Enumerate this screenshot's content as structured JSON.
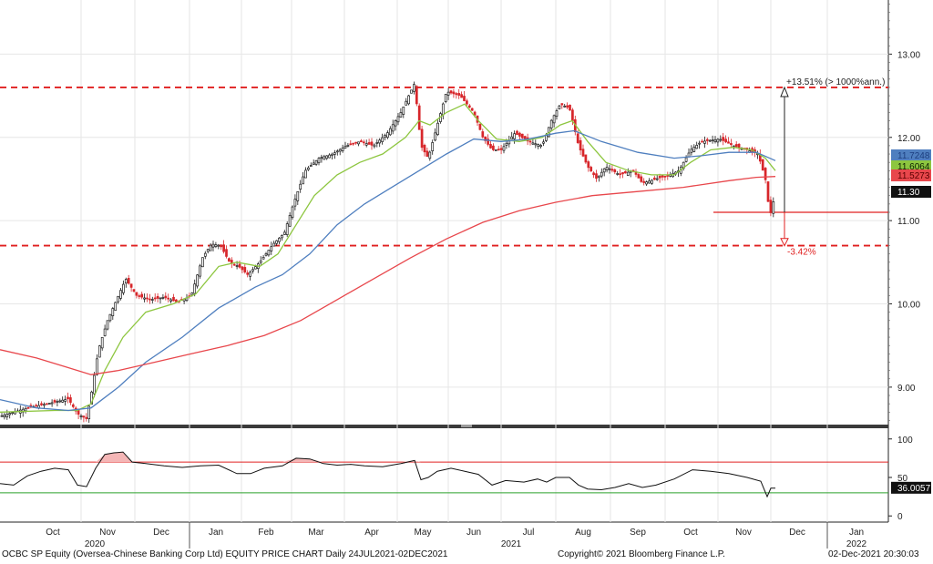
{
  "footer": {
    "left": "OCBC SP Equity (Oversea-Chinese Banking Corp Ltd) EQUITY PRICE CHART  Daily 24JUL2021-02DEC2021",
    "center": "Copyright© 2021 Bloomberg Finance L.P.",
    "right": "02-Dec-2021 20:30:03"
  },
  "chart_data": {
    "type": "line",
    "price_axis": {
      "ylim": [
        8.55,
        13.65
      ],
      "ticks": [
        "9.00",
        "10.00",
        "11.00",
        "12.00",
        "13.00"
      ]
    },
    "rsi_axis": {
      "ylim": [
        -8,
        108
      ],
      "ticks": [
        "0",
        "50",
        "100"
      ]
    },
    "month_labels": [
      "Oct",
      "Nov",
      "Dec",
      "Jan",
      "Feb",
      "Mar",
      "Apr",
      "May",
      "Jun",
      "Jul",
      "Aug",
      "Sep",
      "Oct",
      "Nov",
      "Dec",
      "Jan"
    ],
    "year_labels": [
      "2020",
      "2021",
      "2022"
    ],
    "series": [
      {
        "role": "price",
        "color": "#111111",
        "points": [
          [
            0,
            8.65
          ],
          [
            30,
            8.75
          ],
          [
            60,
            8.82
          ],
          [
            75,
            8.86
          ],
          [
            85,
            8.68
          ],
          [
            95,
            8.62
          ],
          [
            100,
            8.9
          ],
          [
            108,
            9.45
          ],
          [
            118,
            9.8
          ],
          [
            128,
            10.05
          ],
          [
            138,
            10.3
          ],
          [
            150,
            10.1
          ],
          [
            165,
            10.05
          ],
          [
            180,
            10.08
          ],
          [
            195,
            10.02
          ],
          [
            210,
            10.1
          ],
          [
            222,
            10.55
          ],
          [
            232,
            10.72
          ],
          [
            242,
            10.7
          ],
          [
            252,
            10.5
          ],
          [
            262,
            10.45
          ],
          [
            272,
            10.35
          ],
          [
            285,
            10.5
          ],
          [
            300,
            10.72
          ],
          [
            312,
            10.85
          ],
          [
            322,
            11.2
          ],
          [
            335,
            11.6
          ],
          [
            350,
            11.75
          ],
          [
            365,
            11.8
          ],
          [
            380,
            11.9
          ],
          [
            395,
            11.95
          ],
          [
            410,
            11.9
          ],
          [
            425,
            12.05
          ],
          [
            440,
            12.3
          ],
          [
            455,
            12.65
          ],
          [
            462,
            11.9
          ],
          [
            470,
            11.75
          ],
          [
            480,
            12.15
          ],
          [
            490,
            12.55
          ],
          [
            505,
            12.5
          ],
          [
            520,
            12.3
          ],
          [
            530,
            12.0
          ],
          [
            540,
            11.85
          ],
          [
            550,
            11.85
          ],
          [
            565,
            12.05
          ],
          [
            580,
            11.95
          ],
          [
            595,
            11.9
          ],
          [
            605,
            12.2
          ],
          [
            615,
            12.4
          ],
          [
            625,
            12.35
          ],
          [
            635,
            11.9
          ],
          [
            645,
            11.65
          ],
          [
            655,
            11.5
          ],
          [
            665,
            11.65
          ],
          [
            680,
            11.55
          ],
          [
            695,
            11.6
          ],
          [
            705,
            11.45
          ],
          [
            720,
            11.5
          ],
          [
            735,
            11.55
          ],
          [
            745,
            11.6
          ],
          [
            758,
            11.85
          ],
          [
            770,
            11.95
          ],
          [
            790,
            11.98
          ],
          [
            805,
            11.9
          ],
          [
            820,
            11.85
          ],
          [
            832,
            11.8
          ],
          [
            840,
            11.5
          ],
          [
            845,
            11.05
          ],
          [
            848,
            11.2
          ],
          [
            851,
            11.3
          ]
        ]
      },
      {
        "role": "fast moving average",
        "color": "#8dc63f",
        "points": [
          [
            0,
            8.7
          ],
          [
            60,
            8.72
          ],
          [
            85,
            8.72
          ],
          [
            100,
            8.8
          ],
          [
            115,
            9.2
          ],
          [
            135,
            9.6
          ],
          [
            160,
            9.9
          ],
          [
            190,
            10.0
          ],
          [
            215,
            10.12
          ],
          [
            240,
            10.45
          ],
          [
            260,
            10.5
          ],
          [
            285,
            10.45
          ],
          [
            305,
            10.6
          ],
          [
            325,
            10.95
          ],
          [
            345,
            11.3
          ],
          [
            370,
            11.55
          ],
          [
            395,
            11.7
          ],
          [
            420,
            11.8
          ],
          [
            445,
            12.0
          ],
          [
            460,
            12.2
          ],
          [
            472,
            12.15
          ],
          [
            490,
            12.3
          ],
          [
            510,
            12.4
          ],
          [
            525,
            12.2
          ],
          [
            545,
            11.98
          ],
          [
            570,
            11.95
          ],
          [
            595,
            12.0
          ],
          [
            615,
            12.15
          ],
          [
            628,
            12.2
          ],
          [
            645,
            11.95
          ],
          [
            665,
            11.7
          ],
          [
            690,
            11.6
          ],
          [
            715,
            11.55
          ],
          [
            740,
            11.55
          ],
          [
            758,
            11.7
          ],
          [
            780,
            11.85
          ],
          [
            805,
            11.88
          ],
          [
            825,
            11.85
          ],
          [
            840,
            11.75
          ],
          [
            851,
            11.6
          ]
        ]
      },
      {
        "role": "slow moving average",
        "color": "#4f7fbf",
        "points": [
          [
            0,
            8.85
          ],
          [
            40,
            8.75
          ],
          [
            75,
            8.72
          ],
          [
            100,
            8.75
          ],
          [
            130,
            9.0
          ],
          [
            160,
            9.3
          ],
          [
            200,
            9.6
          ],
          [
            240,
            9.95
          ],
          [
            280,
            10.2
          ],
          [
            310,
            10.35
          ],
          [
            340,
            10.6
          ],
          [
            370,
            10.95
          ],
          [
            400,
            11.2
          ],
          [
            430,
            11.4
          ],
          [
            460,
            11.6
          ],
          [
            490,
            11.8
          ],
          [
            520,
            11.98
          ],
          [
            550,
            11.95
          ],
          [
            580,
            11.98
          ],
          [
            610,
            12.05
          ],
          [
            630,
            12.08
          ],
          [
            660,
            11.95
          ],
          [
            700,
            11.82
          ],
          [
            740,
            11.75
          ],
          [
            770,
            11.78
          ],
          [
            800,
            11.82
          ],
          [
            830,
            11.82
          ],
          [
            851,
            11.72
          ]
        ]
      },
      {
        "role": "long moving average",
        "color": "#e8474c",
        "points": [
          [
            0,
            9.45
          ],
          [
            40,
            9.35
          ],
          [
            70,
            9.25
          ],
          [
            100,
            9.15
          ],
          [
            130,
            9.2
          ],
          [
            170,
            9.3
          ],
          [
            210,
            9.4
          ],
          [
            250,
            9.5
          ],
          [
            290,
            9.62
          ],
          [
            330,
            9.8
          ],
          [
            370,
            10.05
          ],
          [
            410,
            10.3
          ],
          [
            450,
            10.55
          ],
          [
            490,
            10.78
          ],
          [
            530,
            10.98
          ],
          [
            570,
            11.12
          ],
          [
            610,
            11.22
          ],
          [
            650,
            11.3
          ],
          [
            700,
            11.35
          ],
          [
            750,
            11.4
          ],
          [
            800,
            11.48
          ],
          [
            830,
            11.52
          ],
          [
            851,
            11.53
          ]
        ]
      },
      {
        "role": "rsi",
        "color": "#111111",
        "points": [
          [
            0,
            42
          ],
          [
            15,
            40
          ],
          [
            30,
            52
          ],
          [
            45,
            58
          ],
          [
            60,
            62
          ],
          [
            75,
            60
          ],
          [
            85,
            40
          ],
          [
            95,
            38
          ],
          [
            105,
            62
          ],
          [
            115,
            80
          ],
          [
            125,
            82
          ],
          [
            135,
            83
          ],
          [
            145,
            70
          ],
          [
            160,
            68
          ],
          [
            180,
            65
          ],
          [
            200,
            63
          ],
          [
            220,
            65
          ],
          [
            240,
            66
          ],
          [
            260,
            55
          ],
          [
            275,
            55
          ],
          [
            290,
            62
          ],
          [
            310,
            65
          ],
          [
            325,
            75
          ],
          [
            340,
            74
          ],
          [
            355,
            68
          ],
          [
            370,
            66
          ],
          [
            385,
            67
          ],
          [
            400,
            65
          ],
          [
            420,
            64
          ],
          [
            440,
            68
          ],
          [
            455,
            72
          ],
          [
            462,
            47
          ],
          [
            470,
            50
          ],
          [
            480,
            58
          ],
          [
            495,
            62
          ],
          [
            510,
            58
          ],
          [
            525,
            54
          ],
          [
            540,
            40
          ],
          [
            555,
            46
          ],
          [
            575,
            44
          ],
          [
            590,
            48
          ],
          [
            600,
            44
          ],
          [
            610,
            50
          ],
          [
            625,
            50
          ],
          [
            635,
            40
          ],
          [
            645,
            35
          ],
          [
            660,
            34
          ],
          [
            675,
            37
          ],
          [
            690,
            42
          ],
          [
            705,
            37
          ],
          [
            720,
            40
          ],
          [
            740,
            48
          ],
          [
            760,
            60
          ],
          [
            780,
            58
          ],
          [
            800,
            55
          ],
          [
            820,
            50
          ],
          [
            835,
            45
          ],
          [
            842,
            25
          ],
          [
            846,
            36
          ],
          [
            851,
            36
          ]
        ]
      }
    ],
    "last_values": [
      {
        "label": "11.7248",
        "value": 11.7248,
        "bg": "#4f7fbf",
        "fg": "#1d3f80"
      },
      {
        "label": "11.6064",
        "value": 11.6064,
        "bg": "#8dc63f",
        "fg": "#0b1f00"
      },
      {
        "label": "11.5273",
        "value": 11.5273,
        "bg": "#e8474c",
        "fg": "#5a0000"
      },
      {
        "label": "11.30",
        "value": 11.3,
        "bg": "#111111",
        "fg": "#ffffff"
      }
    ],
    "rsi_last": {
      "label": "36.0057",
      "value": 36.0057
    },
    "rsi_levels": {
      "overbought": 70,
      "oversold": 30
    },
    "horizontal_levels": [
      12.6,
      10.7
    ],
    "target": {
      "up_label": "+13.51% (> 1000%ann.)",
      "down_label": "-3.42%",
      "current": 11.1,
      "upper": 12.6,
      "lower": 10.72
    }
  }
}
